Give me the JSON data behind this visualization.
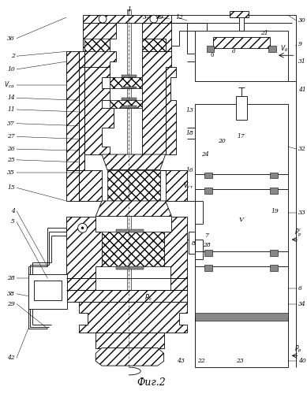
{
  "bg": "#ffffff",
  "lc": "#000000",
  "fig_w": 3.89,
  "fig_h": 5.0,
  "dpi": 100,
  "caption": "Фиг.2"
}
